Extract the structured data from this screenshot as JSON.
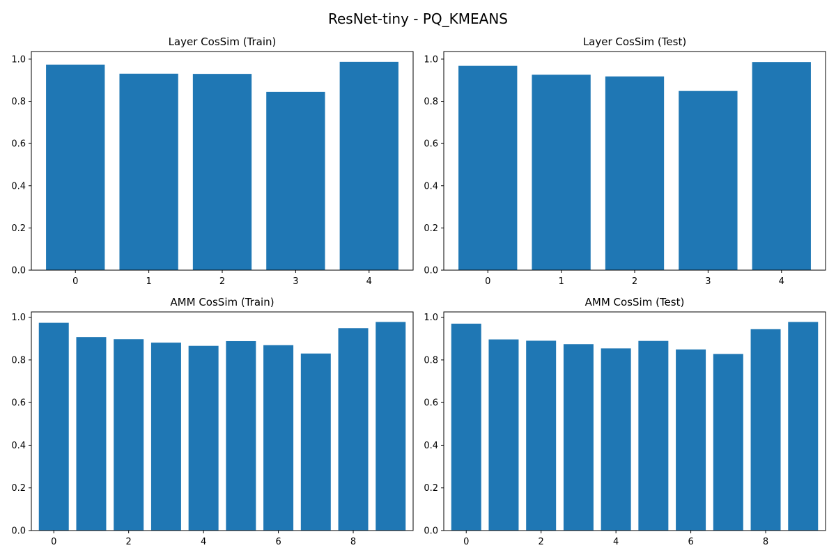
{
  "figure": {
    "title": "ResNet-tiny - PQ_KMEANS"
  },
  "colors": {
    "bar": "#1f77b4",
    "axis": "#000000",
    "background": "#ffffff"
  },
  "chart_data": [
    {
      "type": "bar",
      "title": "Layer CosSim (Train)",
      "xlabel": "",
      "ylabel": "",
      "categories": [
        0,
        1,
        2,
        3,
        4
      ],
      "values": [
        0.974,
        0.931,
        0.93,
        0.845,
        0.987
      ],
      "xlim": [
        -0.6,
        4.6
      ],
      "ylim": [
        0,
        1.036
      ],
      "xticks": [
        0,
        1,
        2,
        3,
        4
      ],
      "yticks": [
        0.0,
        0.2,
        0.4,
        0.6,
        0.8,
        1.0
      ],
      "grid": false
    },
    {
      "type": "bar",
      "title": "Layer CosSim (Test)",
      "xlabel": "",
      "ylabel": "",
      "categories": [
        0,
        1,
        2,
        3,
        4
      ],
      "values": [
        0.968,
        0.926,
        0.918,
        0.849,
        0.986
      ],
      "xlim": [
        -0.6,
        4.6
      ],
      "ylim": [
        0,
        1.036
      ],
      "xticks": [
        0,
        1,
        2,
        3,
        4
      ],
      "yticks": [
        0.0,
        0.2,
        0.4,
        0.6,
        0.8,
        1.0
      ],
      "grid": false
    },
    {
      "type": "bar",
      "title": "AMM CosSim (Train)",
      "xlabel": "",
      "ylabel": "",
      "categories": [
        0,
        1,
        2,
        3,
        4,
        5,
        6,
        7,
        8,
        9
      ],
      "values": [
        0.974,
        0.907,
        0.897,
        0.881,
        0.866,
        0.888,
        0.869,
        0.83,
        0.949,
        0.978
      ],
      "xlim": [
        -0.6,
        9.6
      ],
      "ylim": [
        0,
        1.025
      ],
      "xticks": [
        0,
        2,
        4,
        6,
        8
      ],
      "yticks": [
        0.0,
        0.2,
        0.4,
        0.6,
        0.8,
        1.0
      ],
      "grid": false
    },
    {
      "type": "bar",
      "title": "AMM CosSim (Test)",
      "xlabel": "",
      "ylabel": "",
      "categories": [
        0,
        1,
        2,
        3,
        4,
        5,
        6,
        7,
        8,
        9
      ],
      "values": [
        0.97,
        0.896,
        0.89,
        0.874,
        0.854,
        0.889,
        0.849,
        0.828,
        0.944,
        0.978
      ],
      "xlim": [
        -0.6,
        9.6
      ],
      "ylim": [
        0,
        1.025
      ],
      "xticks": [
        0,
        2,
        4,
        6,
        8
      ],
      "yticks": [
        0.0,
        0.2,
        0.4,
        0.6,
        0.8,
        1.0
      ],
      "grid": false
    }
  ]
}
